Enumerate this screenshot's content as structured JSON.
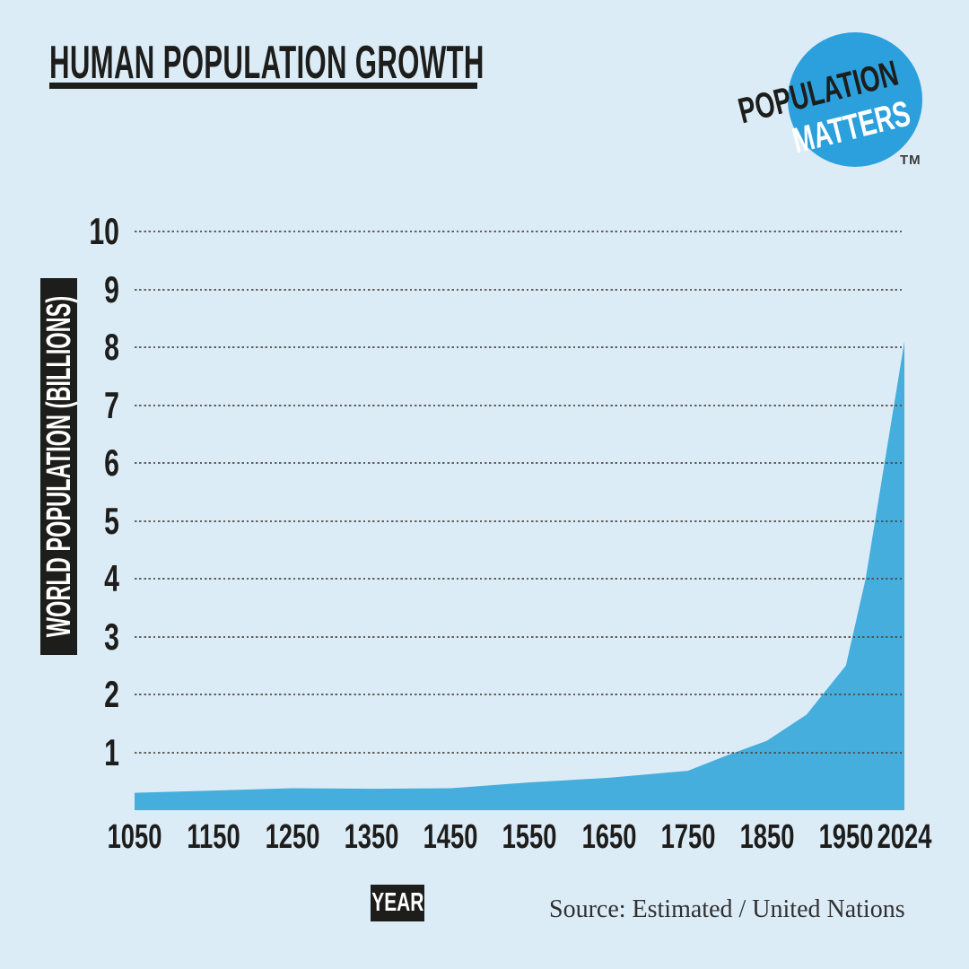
{
  "title": "HUMAN POPULATION GROWTH",
  "logo": {
    "line1": "POPULATION",
    "line2": "MATTERS",
    "trademark": "TM",
    "circle_color": "#2BA0DC"
  },
  "y_axis": {
    "label": "WORLD POPULATION (BILLIONS)",
    "ticks": [
      10,
      9,
      8,
      7,
      6,
      5,
      4,
      3,
      2,
      1
    ]
  },
  "x_axis": {
    "label": "YEAR",
    "ticks": [
      1050,
      1150,
      1250,
      1350,
      1450,
      1550,
      1650,
      1750,
      1850,
      1950,
      2024
    ]
  },
  "source": "Source: Estimated / United Nations",
  "chart_data": {
    "type": "area",
    "title": "Human Population Growth",
    "xlabel": "YEAR",
    "ylabel": "WORLD POPULATION (BILLIONS)",
    "x": [
      1050,
      1150,
      1250,
      1350,
      1450,
      1550,
      1650,
      1750,
      1800,
      1850,
      1900,
      1950,
      1975,
      2000,
      2024
    ],
    "values": [
      0.3,
      0.34,
      0.38,
      0.37,
      0.38,
      0.48,
      0.56,
      0.68,
      0.95,
      1.2,
      1.65,
      2.5,
      4.0,
      6.1,
      8.1
    ],
    "xlim": [
      1050,
      2024
    ],
    "ylim": [
      0,
      10
    ],
    "y_gridlines": "dotted horizontal at every 1 billion",
    "legend": "none",
    "area_color": "#45AEDC",
    "background_color": "#DCECF7",
    "grid_color": "#4D4842"
  }
}
